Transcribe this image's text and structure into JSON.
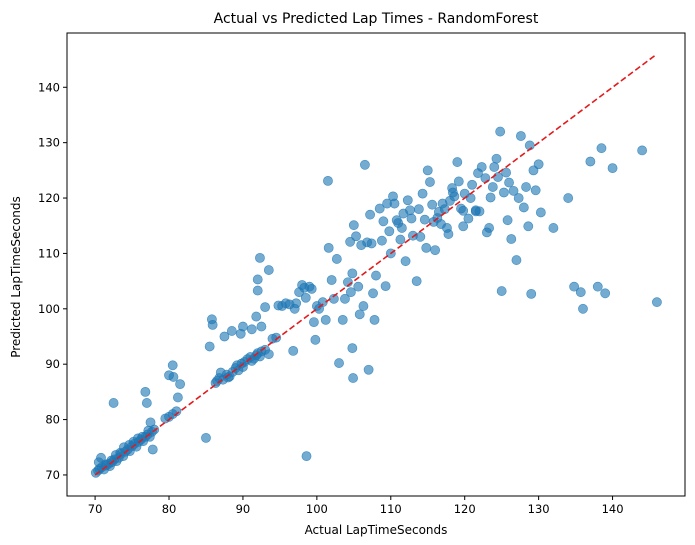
{
  "chart_data": {
    "type": "scatter",
    "title": "Actual vs Predicted Lap Times - RandomForest",
    "xlabel": "Actual LapTimeSeconds",
    "ylabel": "Predicted LapTimeSeconds",
    "xlim": [
      66.2,
      149.8
    ],
    "ylim": [
      66.2,
      149.8
    ],
    "xticks": [
      70,
      80,
      90,
      100,
      110,
      120,
      130,
      140
    ],
    "yticks": [
      70,
      80,
      90,
      100,
      110,
      120,
      130,
      140
    ],
    "grid": false,
    "legend": "none",
    "point_color": "#1f77b4",
    "line_color": "#e41a1c",
    "reference_line": {
      "x": [
        70,
        146
      ],
      "y": [
        70,
        146
      ],
      "style": "dashed"
    },
    "series": [
      {
        "points": [
          [
            70.1,
            70.4
          ],
          [
            70.4,
            70.8
          ],
          [
            70.6,
            71.1
          ],
          [
            70.9,
            71.4
          ],
          [
            71.2,
            71.0
          ],
          [
            71.5,
            71.7
          ],
          [
            71.8,
            72.0
          ],
          [
            72.0,
            71.6
          ],
          [
            72.3,
            72.3
          ],
          [
            72.6,
            72.8
          ],
          [
            72.9,
            72.5
          ],
          [
            73.2,
            73.1
          ],
          [
            73.5,
            73.8
          ],
          [
            73.8,
            73.4
          ],
          [
            74.1,
            74.2
          ],
          [
            74.4,
            74.6
          ],
          [
            74.7,
            74.3
          ],
          [
            75.0,
            75.2
          ],
          [
            75.3,
            75.6
          ],
          [
            75.6,
            75.1
          ],
          [
            75.9,
            76.0
          ],
          [
            76.2,
            76.4
          ],
          [
            76.5,
            76.1
          ],
          [
            76.8,
            76.9
          ],
          [
            77.1,
            77.3
          ],
          [
            77.4,
            76.9
          ],
          [
            77.7,
            77.8
          ],
          [
            78.0,
            78.2
          ],
          [
            70.5,
            72.3
          ],
          [
            70.8,
            73.1
          ],
          [
            71.4,
            71.9
          ],
          [
            72.2,
            72.6
          ],
          [
            72.8,
            73.6
          ],
          [
            73.4,
            74.0
          ],
          [
            73.9,
            75.0
          ],
          [
            74.6,
            75.4
          ],
          [
            75.2,
            76.0
          ],
          [
            75.8,
            76.6
          ],
          [
            76.4,
            76.9
          ],
          [
            77.2,
            78.0
          ],
          [
            72.5,
            83.0
          ],
          [
            76.8,
            85.0
          ],
          [
            77.0,
            83.0
          ],
          [
            77.8,
            74.6
          ],
          [
            77.5,
            79.5
          ],
          [
            79.5,
            80.2
          ],
          [
            80.0,
            80.5
          ],
          [
            80.5,
            81.0
          ],
          [
            81.0,
            81.5
          ],
          [
            80.0,
            88.0
          ],
          [
            80.5,
            89.8
          ],
          [
            80.6,
            87.7
          ],
          [
            81.5,
            86.4
          ],
          [
            81.2,
            84.0
          ],
          [
            85.0,
            76.7
          ],
          [
            85.5,
            93.2
          ],
          [
            85.8,
            98.1
          ],
          [
            85.9,
            97.1
          ],
          [
            86.3,
            86.6
          ],
          [
            86.8,
            87.5
          ],
          [
            87.3,
            87.2
          ],
          [
            87.8,
            88.1
          ],
          [
            88.2,
            87.8
          ],
          [
            88.6,
            88.6
          ],
          [
            89.0,
            89.3
          ],
          [
            89.4,
            88.9
          ],
          [
            89.8,
            90.1
          ],
          [
            90.2,
            90.4
          ],
          [
            90.6,
            90.9
          ],
          [
            91.0,
            91.3
          ],
          [
            91.5,
            91.0
          ],
          [
            92.0,
            92.0
          ],
          [
            92.5,
            92.3
          ],
          [
            93.0,
            92.6
          ],
          [
            86.5,
            87.0
          ],
          [
            87.0,
            88.5
          ],
          [
            88.0,
            87.6
          ],
          [
            89.2,
            89.8
          ],
          [
            90.0,
            89.5
          ],
          [
            91.2,
            90.6
          ],
          [
            91.8,
            91.6
          ],
          [
            92.3,
            91.4
          ],
          [
            93.5,
            91.8
          ],
          [
            87.5,
            95.0
          ],
          [
            88.5,
            96.0
          ],
          [
            89.7,
            95.5
          ],
          [
            90.0,
            96.8
          ],
          [
            91.2,
            96.3
          ],
          [
            91.8,
            98.6
          ],
          [
            92.5,
            96.8
          ],
          [
            92.0,
            103.3
          ],
          [
            92.0,
            105.3
          ],
          [
            92.3,
            109.2
          ],
          [
            93.0,
            100.3
          ],
          [
            93.5,
            107.0
          ],
          [
            94.0,
            94.6
          ],
          [
            94.5,
            94.8
          ],
          [
            94.8,
            100.6
          ],
          [
            95.3,
            100.5
          ],
          [
            95.8,
            101.0
          ],
          [
            96.3,
            100.8
          ],
          [
            96.8,
            92.4
          ],
          [
            97.2,
            101.0
          ],
          [
            97.6,
            103.0
          ],
          [
            97.0,
            100.0
          ],
          [
            98.0,
            104.3
          ],
          [
            98.3,
            103.8
          ],
          [
            98.6,
            73.4
          ],
          [
            98.5,
            102.0
          ],
          [
            99.0,
            104.0
          ],
          [
            99.3,
            103.6
          ],
          [
            99.6,
            97.6
          ],
          [
            99.8,
            94.4
          ],
          [
            100.0,
            100.5
          ],
          [
            100.3,
            100.0
          ],
          [
            100.8,
            101.2
          ],
          [
            101.2,
            98.0
          ],
          [
            101.6,
            111.0
          ],
          [
            101.5,
            123.1
          ],
          [
            102.0,
            105.2
          ],
          [
            102.3,
            101.8
          ],
          [
            102.7,
            109.0
          ],
          [
            103.0,
            90.2
          ],
          [
            103.5,
            98.0
          ],
          [
            103.8,
            101.8
          ],
          [
            104.2,
            104.8
          ],
          [
            104.5,
            112.1
          ],
          [
            104.6,
            103.0
          ],
          [
            104.8,
            106.4
          ],
          [
            104.8,
            92.9
          ],
          [
            104.9,
            87.5
          ],
          [
            105.0,
            115.1
          ],
          [
            105.3,
            113.1
          ],
          [
            105.6,
            104.0
          ],
          [
            105.8,
            99.0
          ],
          [
            106.0,
            111.5
          ],
          [
            106.3,
            100.5
          ],
          [
            106.5,
            126.0
          ],
          [
            106.8,
            112.0
          ],
          [
            107.0,
            89.0
          ],
          [
            107.2,
            117.0
          ],
          [
            107.4,
            111.8
          ],
          [
            107.6,
            102.8
          ],
          [
            107.8,
            98.0
          ],
          [
            108.0,
            106.0
          ],
          [
            108.5,
            118.1
          ],
          [
            108.8,
            112.3
          ],
          [
            109.0,
            115.8
          ],
          [
            109.3,
            104.1
          ],
          [
            109.5,
            119.0
          ],
          [
            109.8,
            114.0
          ],
          [
            110.0,
            110.0
          ],
          [
            110.3,
            120.3
          ],
          [
            110.5,
            119.0
          ],
          [
            110.8,
            116.0
          ],
          [
            111.0,
            115.5
          ],
          [
            111.3,
            112.5
          ],
          [
            111.5,
            114.6
          ],
          [
            111.7,
            117.2
          ],
          [
            112.0,
            108.6
          ],
          [
            112.3,
            119.6
          ],
          [
            112.6,
            117.8
          ],
          [
            112.8,
            116.3
          ],
          [
            113.0,
            113.2
          ],
          [
            113.5,
            105.0
          ],
          [
            113.8,
            118.0
          ],
          [
            114.0,
            113.0
          ],
          [
            114.3,
            120.8
          ],
          [
            114.6,
            116.1
          ],
          [
            114.8,
            111.0
          ],
          [
            115.0,
            125.0
          ],
          [
            115.3,
            122.9
          ],
          [
            115.6,
            118.8
          ],
          [
            115.8,
            115.7
          ],
          [
            116.0,
            110.6
          ],
          [
            116.3,
            116.4
          ],
          [
            116.5,
            117.5
          ],
          [
            116.8,
            115.3
          ],
          [
            117.0,
            119.0
          ],
          [
            117.3,
            118.0
          ],
          [
            117.6,
            114.6
          ],
          [
            118.0,
            119.5
          ],
          [
            118.3,
            121.8
          ],
          [
            118.6,
            120.3
          ],
          [
            119.0,
            126.5
          ],
          [
            119.2,
            123.0
          ],
          [
            119.5,
            118.1
          ],
          [
            119.8,
            114.9
          ],
          [
            120.0,
            120.8
          ],
          [
            120.5,
            116.3
          ],
          [
            121.0,
            122.4
          ],
          [
            121.5,
            117.8
          ],
          [
            121.8,
            124.5
          ],
          [
            122.0,
            117.6
          ],
          [
            122.3,
            125.6
          ],
          [
            122.8,
            123.6
          ],
          [
            123.0,
            113.8
          ],
          [
            123.3,
            114.6
          ],
          [
            123.5,
            120.1
          ],
          [
            123.8,
            122.0
          ],
          [
            124.0,
            125.6
          ],
          [
            124.3,
            127.1
          ],
          [
            124.5,
            123.8
          ],
          [
            124.8,
            132.0
          ],
          [
            125.0,
            103.2
          ],
          [
            125.3,
            121.0
          ],
          [
            125.6,
            124.6
          ],
          [
            125.8,
            116.0
          ],
          [
            126.0,
            122.8
          ],
          [
            126.3,
            112.6
          ],
          [
            126.6,
            121.3
          ],
          [
            127.0,
            108.8
          ],
          [
            127.3,
            120.0
          ],
          [
            127.6,
            131.2
          ],
          [
            128.0,
            118.3
          ],
          [
            128.3,
            122.0
          ],
          [
            128.6,
            114.9
          ],
          [
            128.8,
            129.5
          ],
          [
            129.0,
            102.7
          ],
          [
            129.3,
            125.0
          ],
          [
            129.6,
            121.4
          ],
          [
            130.0,
            126.1
          ],
          [
            130.3,
            117.4
          ],
          [
            132.0,
            114.6
          ],
          [
            134.0,
            120.0
          ],
          [
            134.8,
            104.0
          ],
          [
            135.7,
            103.0
          ],
          [
            136.0,
            100.0
          ],
          [
            137.0,
            126.6
          ],
          [
            138.0,
            104.0
          ],
          [
            138.5,
            129.0
          ],
          [
            139.0,
            102.8
          ],
          [
            140.0,
            125.4
          ],
          [
            144.0,
            128.6
          ],
          [
            146.0,
            101.2
          ],
          [
            121.5,
            117.6
          ],
          [
            119.8,
            117.7
          ],
          [
            118.4,
            121.0
          ],
          [
            120.8,
            120.0
          ],
          [
            117.8,
            113.5
          ]
        ]
      }
    ]
  }
}
